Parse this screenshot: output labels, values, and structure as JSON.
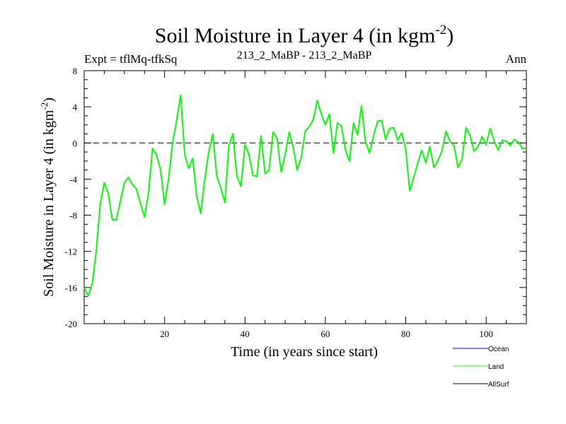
{
  "header": {
    "title_main": "Soil Moisture in Layer 4 (in kgm",
    "title_sup": "-2",
    "title_close": ")",
    "expt_label": "Expt = tflMq-tfkSq",
    "run_label": "213_2_MaBP - 213_2_MaBP",
    "season_label": "Ann"
  },
  "legend": {
    "items": [
      {
        "label": "Ocean",
        "color": "#0000ff"
      },
      {
        "label": "Land",
        "color": "#00ff00"
      },
      {
        "label": "AllSurf",
        "color": "#000000"
      }
    ]
  },
  "chart_data": {
    "type": "line",
    "title": "Soil Moisture in Layer 4 (in kgm-2)",
    "xlabel": "Time (in years since start)",
    "ylabel_main": "Soil Moisture in Layer 4 (in kgm",
    "ylabel_sup": "-2",
    "ylabel_close": ")",
    "xlim": [
      0,
      110
    ],
    "ylim": [
      -20,
      8
    ],
    "x_ticks": [
      20,
      40,
      60,
      80,
      100
    ],
    "y_ticks": [
      8,
      4,
      0,
      -4,
      -8,
      -12,
      -16,
      -20
    ],
    "zero_line": {
      "y": 0,
      "style": "dashed"
    },
    "series": [
      {
        "name": "Land",
        "color": "#00ff00",
        "x": [
          0,
          1,
          2,
          3,
          4,
          5,
          6,
          7,
          8,
          9,
          10,
          11,
          12,
          13,
          14,
          15,
          16,
          17,
          18,
          19,
          20,
          21,
          22,
          23,
          24,
          25,
          26,
          27,
          28,
          29,
          30,
          31,
          32,
          33,
          34,
          35,
          36,
          37,
          38,
          39,
          40,
          41,
          42,
          43,
          44,
          45,
          46,
          47,
          48,
          49,
          50,
          51,
          52,
          53,
          54,
          55,
          56,
          57,
          58,
          59,
          60,
          61,
          62,
          63,
          64,
          65,
          66,
          67,
          68,
          69,
          70,
          71,
          72,
          73,
          74,
          75,
          76,
          77,
          78,
          79,
          80,
          81,
          82,
          83,
          84,
          85,
          86,
          87,
          88,
          89,
          90,
          91,
          92,
          93,
          94,
          95,
          96,
          97,
          98,
          99,
          100,
          101,
          102,
          103,
          104,
          105,
          106,
          107,
          108,
          109,
          110
        ],
        "values": [
          -16,
          -16.9,
          -15.6,
          -12,
          -6.8,
          -4.4,
          -5.6,
          -8.5,
          -8.5,
          -6.5,
          -4.4,
          -3.8,
          -4.6,
          -5.1,
          -6.7,
          -8.2,
          -5.6,
          -0.6,
          -1.3,
          -3,
          -6.8,
          -4,
          0,
          2.5,
          5.3,
          -1.2,
          -2.8,
          -1.7,
          -5.9,
          -7.8,
          -4,
          -1,
          1,
          -3.7,
          -5,
          -6.6,
          -0.3,
          1,
          -3.7,
          -4.8,
          -0.2,
          -1.3,
          -3.6,
          -3.7,
          0.8,
          -3.4,
          -3,
          1.2,
          0.5,
          -3.2,
          -1.3,
          1.2,
          -0.5,
          -3,
          -1.6,
          1.3,
          1.8,
          2.6,
          4.7,
          3.2,
          2,
          3.2,
          -1.1,
          2.2,
          1.9,
          -0.8,
          -2,
          2.2,
          0.9,
          4.1,
          0.1,
          -1.1,
          0.8,
          2.4,
          2.5,
          0.4,
          1.6,
          1.7,
          0.3,
          1.1,
          -0.7,
          -5.3,
          -3.8,
          -2.2,
          -0.8,
          -2.2,
          -0.4,
          -2.7,
          -2,
          -0.9,
          1.3,
          0.2,
          -0.3,
          -2.7,
          -1.8,
          1.7,
          0.8,
          -0.9,
          -0.4,
          0.7,
          -0.2,
          1.6,
          0.2,
          -0.8,
          0.3,
          0.2,
          -0.3,
          0.4,
          0.1,
          -0.6,
          -0.6
        ]
      }
    ]
  }
}
